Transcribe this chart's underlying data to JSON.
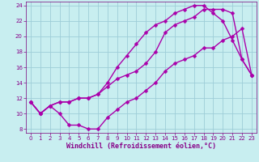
{
  "xlabel": "Windchill (Refroidissement éolien,°C)",
  "xlim": [
    -0.5,
    23.5
  ],
  "ylim": [
    7.5,
    24.5
  ],
  "xticks": [
    0,
    1,
    2,
    3,
    4,
    5,
    6,
    7,
    8,
    9,
    10,
    11,
    12,
    13,
    14,
    15,
    16,
    17,
    18,
    19,
    20,
    21,
    22,
    23
  ],
  "yticks": [
    8,
    10,
    12,
    14,
    16,
    18,
    20,
    22,
    24
  ],
  "background_color": "#c8eef0",
  "grid_color": "#9ecdd8",
  "line_color": "#aa00aa",
  "line1_x": [
    0,
    1,
    2,
    3,
    4,
    5,
    6,
    7,
    8,
    9,
    10,
    11,
    12,
    13,
    14,
    15,
    16,
    17,
    18,
    19,
    20,
    21,
    22,
    23
  ],
  "line1_y": [
    11.5,
    10.0,
    11.0,
    10.0,
    8.5,
    8.5,
    8.0,
    8.0,
    9.5,
    10.5,
    11.5,
    12.0,
    13.0,
    14.0,
    15.5,
    16.5,
    17.0,
    17.5,
    18.5,
    18.5,
    19.5,
    20.0,
    21.0,
    15.0
  ],
  "line2_x": [
    0,
    1,
    2,
    3,
    4,
    5,
    6,
    7,
    8,
    9,
    10,
    11,
    12,
    13,
    14,
    15,
    16,
    17,
    18,
    19,
    20,
    21,
    22,
    23
  ],
  "line2_y": [
    11.5,
    10.0,
    11.0,
    11.5,
    11.5,
    12.0,
    12.0,
    12.5,
    13.5,
    14.5,
    15.0,
    15.5,
    16.5,
    18.0,
    20.5,
    21.5,
    22.0,
    22.5,
    23.5,
    23.5,
    23.5,
    23.0,
    17.0,
    15.0
  ],
  "line3_x": [
    0,
    1,
    2,
    3,
    4,
    5,
    6,
    7,
    8,
    9,
    10,
    11,
    12,
    13,
    14,
    15,
    16,
    17,
    18,
    19,
    20,
    21,
    22,
    23
  ],
  "line3_y": [
    11.5,
    10.0,
    11.0,
    11.5,
    11.5,
    12.0,
    12.0,
    12.5,
    14.0,
    16.0,
    17.5,
    19.0,
    20.5,
    21.5,
    22.0,
    23.0,
    23.5,
    24.0,
    24.0,
    23.0,
    22.0,
    19.5,
    17.0,
    15.0
  ],
  "marker": "D",
  "marker_size": 2.5,
  "linewidth": 1.0,
  "tick_fontsize": 5.0,
  "label_fontsize": 6.0,
  "tick_color": "#880088",
  "label_color": "#880088",
  "spine_color": "#7a007a"
}
